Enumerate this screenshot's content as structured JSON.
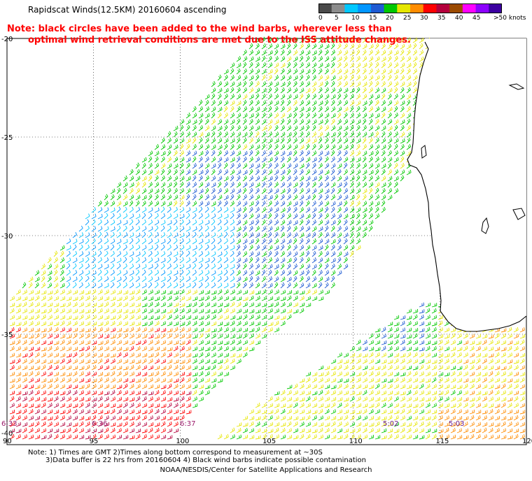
{
  "title": "Rapidscat Winds(12.5KM) 20160604 ascending",
  "note_line1": "Note: black circles have been added to the wind barbs, wherever less than",
  "note_line2": "optimal wind retrieval conditions are met due to the ISS attitude changes.",
  "legend": {
    "labels": [
      "0",
      "5",
      "10",
      "15",
      "20",
      "25",
      "30",
      "35",
      "40",
      "45",
      ">50 knots"
    ],
    "colors": [
      "#4a4a4a",
      "#8c8c8c",
      "#00c8ff",
      "#0096ff",
      "#1e5ad2",
      "#00c800",
      "#e6e600",
      "#ff8c00",
      "#ff0000",
      "#b4003c",
      "#9b4a00",
      "#ff00ff",
      "#8c00ff",
      "#3c00a0"
    ]
  },
  "map": {
    "lat_labels": [
      "-20",
      "-25",
      "-30",
      "-35",
      "-40"
    ],
    "lon_labels": [
      "90",
      "95",
      "100",
      "105",
      "110",
      "115",
      "120"
    ],
    "time_labels": [
      "6:33",
      "6:36",
      "6:37",
      "5:02",
      "5:03"
    ]
  },
  "footer_line1": "Note: 1) Times are GMT 2)Times along bottom correspond to measurement at ~30S",
  "footer_line2": "3)Data buffer is 22 hrs from 20160604 4) Black wind barbs indicate possible contamination",
  "footer_line3": "NOAA/NESDIS/Center for Satellite Applications and Research"
}
